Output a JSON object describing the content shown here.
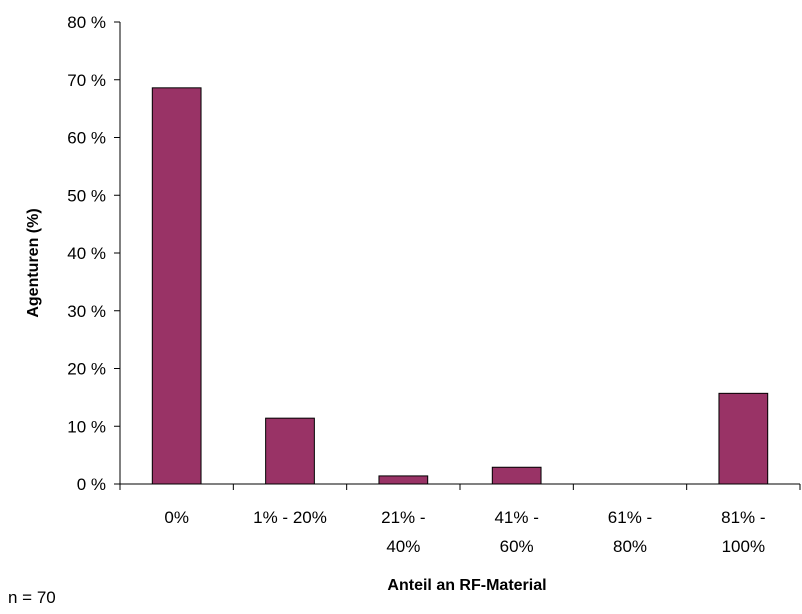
{
  "chart_data": {
    "type": "bar",
    "categories": [
      [
        "0%"
      ],
      [
        "1% - 20%"
      ],
      [
        "21% -",
        "40%"
      ],
      [
        "41% -",
        "60%"
      ],
      [
        "61% -",
        "80%"
      ],
      [
        "81% -",
        "100%"
      ]
    ],
    "values": [
      68.6,
      11.4,
      1.4,
      2.9,
      0.0,
      15.7
    ],
    "ylabel": "Agenturen (%)",
    "xlabel": "Anteil an RF-Material",
    "ylim": [
      0,
      80
    ],
    "yticks": [
      0,
      10,
      20,
      30,
      40,
      50,
      60,
      70,
      80
    ],
    "ytick_suffix": " %",
    "grid": false,
    "bar_color": "#993366"
  },
  "note": "n = 70"
}
